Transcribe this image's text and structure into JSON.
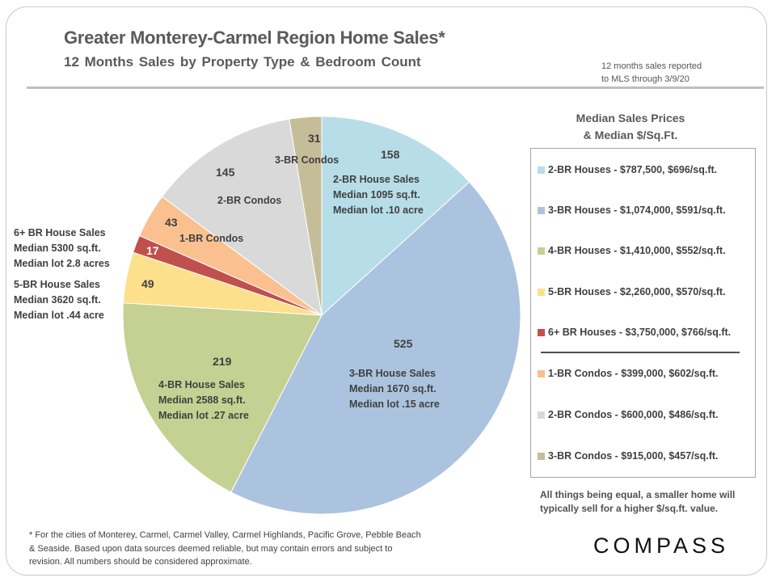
{
  "header": {
    "title": "Greater Monterey-Carmel Region Home Sales*",
    "subtitle": "12 Months Sales by Property Type & Bedroom Count",
    "report_note_line1": "12 months sales reported",
    "report_note_line2": "to MLS through 3/9/20"
  },
  "legend": {
    "heading_line1": "Median Sales Prices",
    "heading_line2": "& Median $/Sq.Ft.",
    "items": [
      {
        "label": "2-BR Houses - $787,500, $696/sq.ft.",
        "color": "#b7dde8"
      },
      {
        "label": "3-BR Houses - $1,074,000, $591/sq.ft.",
        "color": "#abc3de"
      },
      {
        "label": "4-BR Houses - $1,410,000, $552/sq.ft.",
        "color": "#c4d192"
      },
      {
        "label": "5-BR Houses - $2,260,000,  $570/sq.ft.",
        "color": "#fde08c"
      },
      {
        "label": "6+ BR Houses - $3,750,000, $766/sq.ft.",
        "color": "#c0504d"
      },
      {
        "label": "1-BR Condos - $399,000, $602/sq.ft.",
        "color": "#fac090"
      },
      {
        "label": "2-BR Condos - $600,000, $486/sq.ft.",
        "color": "#d9d9d9"
      },
      {
        "label": "3-BR Condos - $915,000, $457/sq.ft.",
        "color": "#c4bd97"
      }
    ],
    "note": "All things being equal, a smaller home will typically sell for a higher $/sq.ft. value."
  },
  "outside_labels": {
    "six_br": [
      "6+ BR House Sales",
      "Median 5300 sq.ft.",
      "Median lot 2.8 acres"
    ],
    "five_br": [
      "5-BR House Sales",
      "Median 3620 sq.ft.",
      "Median lot .44 acre"
    ]
  },
  "footnote": "* For the cities of Monterey, Carmel, Carmel Valley, Carmel Highlands, Pacific Grove, Pebble Beach & Seaside. Based upon data sources deemed reliable, but may contain errors and subject to revision. All numbers should be considered approximate.",
  "logo": "COMPASS",
  "chart_data": {
    "type": "pie",
    "title": "Greater Monterey-Carmel Region Home Sales*",
    "subtitle": "12 Months Sales by Property Type & Bedroom Count",
    "start": "12 o'clock, clockwise",
    "slices": [
      {
        "name": "2-BR Houses",
        "value": 158,
        "color": "#b7dde8",
        "label_lines": [
          "2-BR House Sales",
          "Median 1095 sq.ft.",
          "Median lot .10 acre"
        ],
        "value_color": "#404040"
      },
      {
        "name": "3-BR Houses",
        "value": 525,
        "color": "#abc3de",
        "label_lines": [
          "3-BR House Sales",
          "Median 1670 sq.ft.",
          "Median lot .15 acre"
        ],
        "value_color": "#404040"
      },
      {
        "name": "4-BR Houses",
        "value": 219,
        "color": "#c4d192",
        "label_lines": [
          "4-BR House Sales",
          "Median 2588 sq.ft.",
          "Median lot .27 acre"
        ],
        "value_color": "#404040"
      },
      {
        "name": "5-BR Houses",
        "value": 49,
        "color": "#fde08c",
        "label_lines": [],
        "value_color": "#404040"
      },
      {
        "name": "6+ BR Houses",
        "value": 17,
        "color": "#c0504d",
        "label_lines": [],
        "value_color": "#ffffff"
      },
      {
        "name": "1-BR Condos",
        "value": 43,
        "color": "#fac090",
        "label_lines": [
          "1-BR Condos"
        ],
        "value_color": "#404040"
      },
      {
        "name": "2-BR Condos",
        "value": 145,
        "color": "#d9d9d9",
        "label_lines": [
          "2-BR Condos"
        ],
        "value_color": "#404040"
      },
      {
        "name": "3-BR Condos",
        "value": 31,
        "color": "#c4bd97",
        "label_lines": [
          "3-BR Condos"
        ],
        "value_color": "#404040"
      }
    ],
    "legend_position": "right"
  }
}
